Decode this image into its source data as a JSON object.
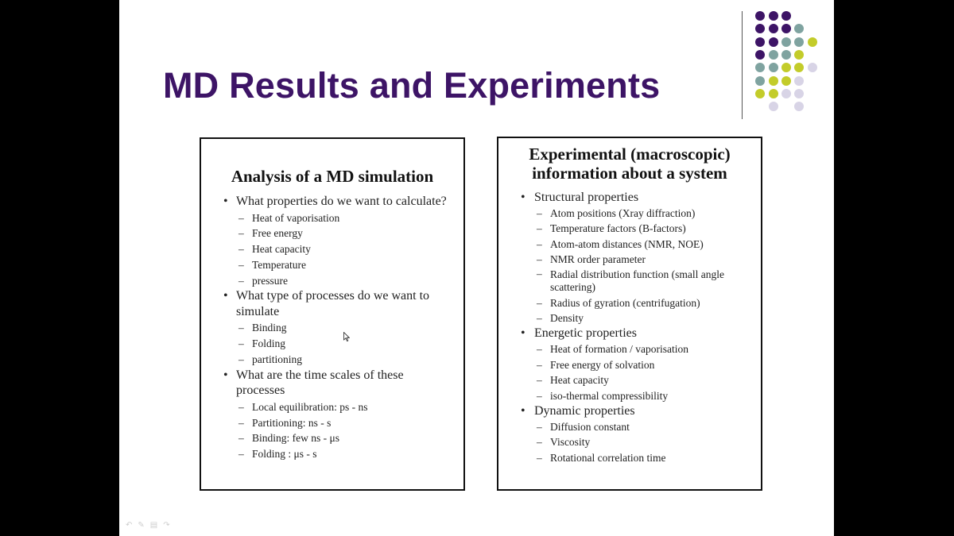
{
  "slide": {
    "title": "MD Results and Experiments",
    "decor_colors": {
      "purple": "#3d1466",
      "teal": "#7fa3a0",
      "lime": "#c3cc2a",
      "lavender": "#d8d4e6"
    },
    "left_panel": {
      "heading": "Analysis of a MD simulation",
      "bullets": [
        {
          "text": "What properties do we want to calculate?",
          "subitems": [
            "Heat of vaporisation",
            "Free energy",
            "Heat capacity",
            "Temperature",
            "pressure"
          ]
        },
        {
          "text": "What type of processes do we want to simulate",
          "subitems": [
            "Binding",
            "Folding",
            "partitioning"
          ]
        },
        {
          "text": "What are the time scales of these processes",
          "subitems": [
            "Local equilibration: ps - ns",
            "Partitioning: ns - s",
            "Binding: few ns - μs",
            "Folding : μs - s"
          ]
        }
      ]
    },
    "right_panel": {
      "heading_line1": "Experimental (macroscopic)",
      "heading_line2": "information about a system",
      "bullets": [
        {
          "text": "Structural properties",
          "subitems": [
            "Atom positions (Xray diffraction)",
            "Temperature factors (B-factors)",
            "Atom-atom distances (NMR, NOE)",
            "NMR order parameter",
            "Radial distribution function (small angle scattering)",
            "Radius of gyration (centrifugation)",
            "Density"
          ]
        },
        {
          "text": "Energetic properties",
          "subitems": [
            "Heat of formation / vaporisation",
            "Free energy of solvation",
            "Heat capacity",
            "iso-thermal compressibility"
          ]
        },
        {
          "text": "Dynamic properties",
          "subitems": [
            "Diffusion constant",
            "Viscosity",
            "Rotational correlation time"
          ]
        }
      ]
    },
    "nav_icons": [
      "previous-icon",
      "pen-icon",
      "slides-menu-icon",
      "next-icon"
    ]
  }
}
